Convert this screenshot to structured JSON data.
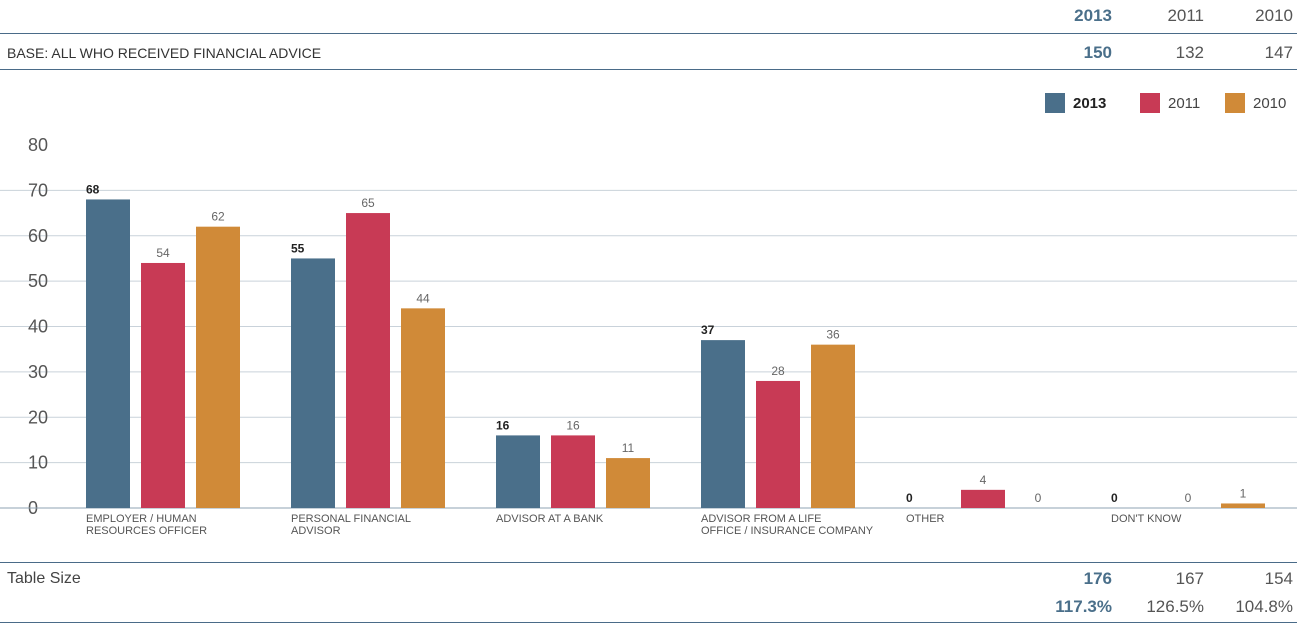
{
  "header": {
    "years": [
      "2013",
      "2011",
      "2010"
    ],
    "base_label": "BASE: ALL WHO RECEIVED FINANCIAL ADVICE",
    "base_values": [
      "150",
      "132",
      "147"
    ]
  },
  "legend": [
    {
      "label": "2013",
      "color": "#4a6f8a"
    },
    {
      "label": "2011",
      "color": "#c83a55"
    },
    {
      "label": "2010",
      "color": "#d08a38"
    }
  ],
  "footer": {
    "table_size_label": "Table Size",
    "table_size_values": [
      "176",
      "167",
      "154"
    ],
    "percent_values": [
      "117.3%",
      "126.5%",
      "104.8%"
    ]
  },
  "chart_data": {
    "type": "bar",
    "categories": [
      [
        "EMPLOYER / HUMAN",
        "RESOURCES OFFICER"
      ],
      [
        "PERSONAL FINANCIAL",
        "ADVISOR"
      ],
      [
        "ADVISOR AT A BANK"
      ],
      [
        "ADVISOR FROM A LIFE",
        "OFFICE / INSURANCE COMPANY"
      ],
      [
        "OTHER"
      ],
      [
        "DON'T KNOW"
      ]
    ],
    "series": [
      {
        "name": "2013",
        "color": "#4a6f8a",
        "values": [
          68,
          55,
          16,
          37,
          0,
          0
        ]
      },
      {
        "name": "2011",
        "color": "#c83a55",
        "values": [
          54,
          65,
          16,
          28,
          4,
          0
        ]
      },
      {
        "name": "2010",
        "color": "#d08a38",
        "values": [
          62,
          44,
          11,
          36,
          0,
          1
        ]
      }
    ],
    "ylim": [
      0,
      80
    ],
    "yticks": [
      0,
      10,
      20,
      30,
      40,
      50,
      60,
      70,
      80
    ],
    "grid": true,
    "legend_position": "top-right"
  }
}
